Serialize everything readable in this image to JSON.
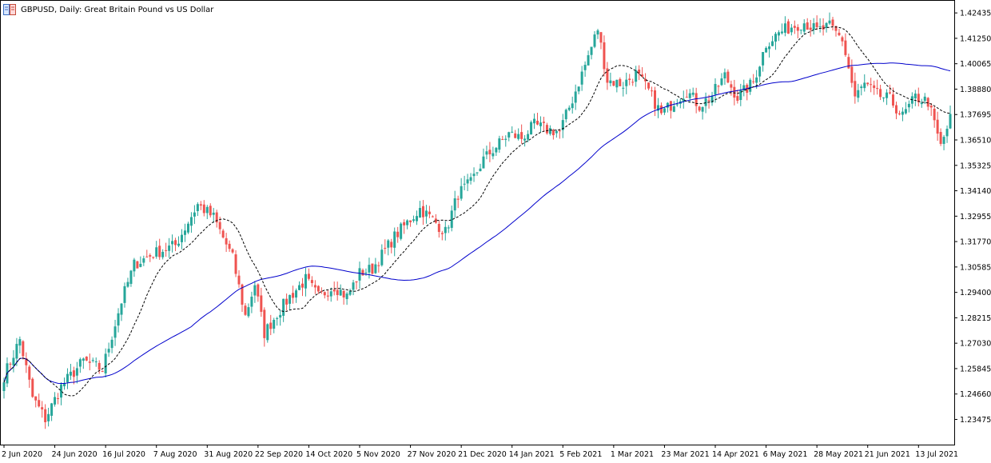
{
  "header": {
    "title": "GBPUSD, Daily:  Great Britain Pound vs US Dollar",
    "icon": "chart-type-icon"
  },
  "chart_data": {
    "type": "candlestick",
    "symbol": "GBPUSD",
    "timeframe": "Daily",
    "y_ticks": [
      "1.42435",
      "1.41250",
      "1.40065",
      "1.38880",
      "1.37695",
      "1.36510",
      "1.35325",
      "1.34140",
      "1.32955",
      "1.31770",
      "1.30585",
      "1.29400",
      "1.28215",
      "1.27030",
      "1.25845",
      "1.24660",
      "1.23475"
    ],
    "ylim": [
      1.223,
      1.43
    ],
    "x_labels": [
      "2 Jun 2020",
      "24 Jun 2020",
      "16 Jul 2020",
      "7 Aug 2020",
      "31 Aug 2020",
      "22 Sep 2020",
      "14 Oct 2020",
      "5 Nov 2020",
      "27 Nov 2020",
      "21 Dec 2020",
      "14 Jan 2021",
      "5 Feb 2021",
      "1 Mar 2021",
      "23 Mar 2021",
      "14 Apr 2021",
      "6 May 2021",
      "28 May 2021",
      "21 Jun 2021",
      "13 Jul 2021"
    ],
    "bars_per_label": 16,
    "close_anchors": [
      [
        0,
        1.255
      ],
      [
        5,
        1.272
      ],
      [
        9,
        1.245
      ],
      [
        13,
        1.235
      ],
      [
        18,
        1.25
      ],
      [
        25,
        1.262
      ],
      [
        31,
        1.258
      ],
      [
        37,
        1.29
      ],
      [
        41,
        1.307
      ],
      [
        47,
        1.312
      ],
      [
        54,
        1.316
      ],
      [
        61,
        1.335
      ],
      [
        66,
        1.329
      ],
      [
        72,
        1.31
      ],
      [
        76,
        1.283
      ],
      [
        79,
        1.298
      ],
      [
        82,
        1.275
      ],
      [
        86,
        1.284
      ],
      [
        90,
        1.292
      ],
      [
        95,
        1.3
      ],
      [
        99,
        1.292
      ],
      [
        104,
        1.297
      ],
      [
        108,
        1.292
      ],
      [
        112,
        1.303
      ],
      [
        116,
        1.305
      ],
      [
        123,
        1.32
      ],
      [
        131,
        1.333
      ],
      [
        135,
        1.328
      ],
      [
        139,
        1.322
      ],
      [
        143,
        1.34
      ],
      [
        147,
        1.345
      ],
      [
        151,
        1.356
      ],
      [
        155,
        1.362
      ],
      [
        159,
        1.368
      ],
      [
        163,
        1.366
      ],
      [
        167,
        1.372
      ],
      [
        171,
        1.37
      ],
      [
        175,
        1.369
      ],
      [
        179,
        1.384
      ],
      [
        183,
        1.4
      ],
      [
        187,
        1.417
      ],
      [
        190,
        1.393
      ],
      [
        195,
        1.391
      ],
      [
        199,
        1.396
      ],
      [
        203,
        1.388
      ],
      [
        207,
        1.377
      ],
      [
        211,
        1.383
      ],
      [
        215,
        1.388
      ],
      [
        219,
        1.381
      ],
      [
        223,
        1.386
      ],
      [
        227,
        1.395
      ],
      [
        231,
        1.385
      ],
      [
        236,
        1.392
      ],
      [
        240,
        1.41
      ],
      [
        244,
        1.415
      ],
      [
        248,
        1.418
      ],
      [
        252,
        1.42
      ],
      [
        256,
        1.416
      ],
      [
        260,
        1.418
      ],
      [
        264,
        1.412
      ],
      [
        268,
        1.385
      ],
      [
        271,
        1.391
      ],
      [
        275,
        1.386
      ],
      [
        279,
        1.384
      ],
      [
        283,
        1.376
      ],
      [
        287,
        1.385
      ],
      [
        291,
        1.383
      ],
      [
        295,
        1.362
      ],
      [
        298,
        1.375
      ]
    ],
    "series": [
      {
        "name": "",
        "kind": "moving-average",
        "color": "#0000cc",
        "style": "solid"
      },
      {
        "name": "",
        "kind": "moving-average",
        "color": "#000000",
        "style": "dotted"
      }
    ],
    "grid": false,
    "bull_color": "#26a69a",
    "bear_color": "#ef5350"
  }
}
